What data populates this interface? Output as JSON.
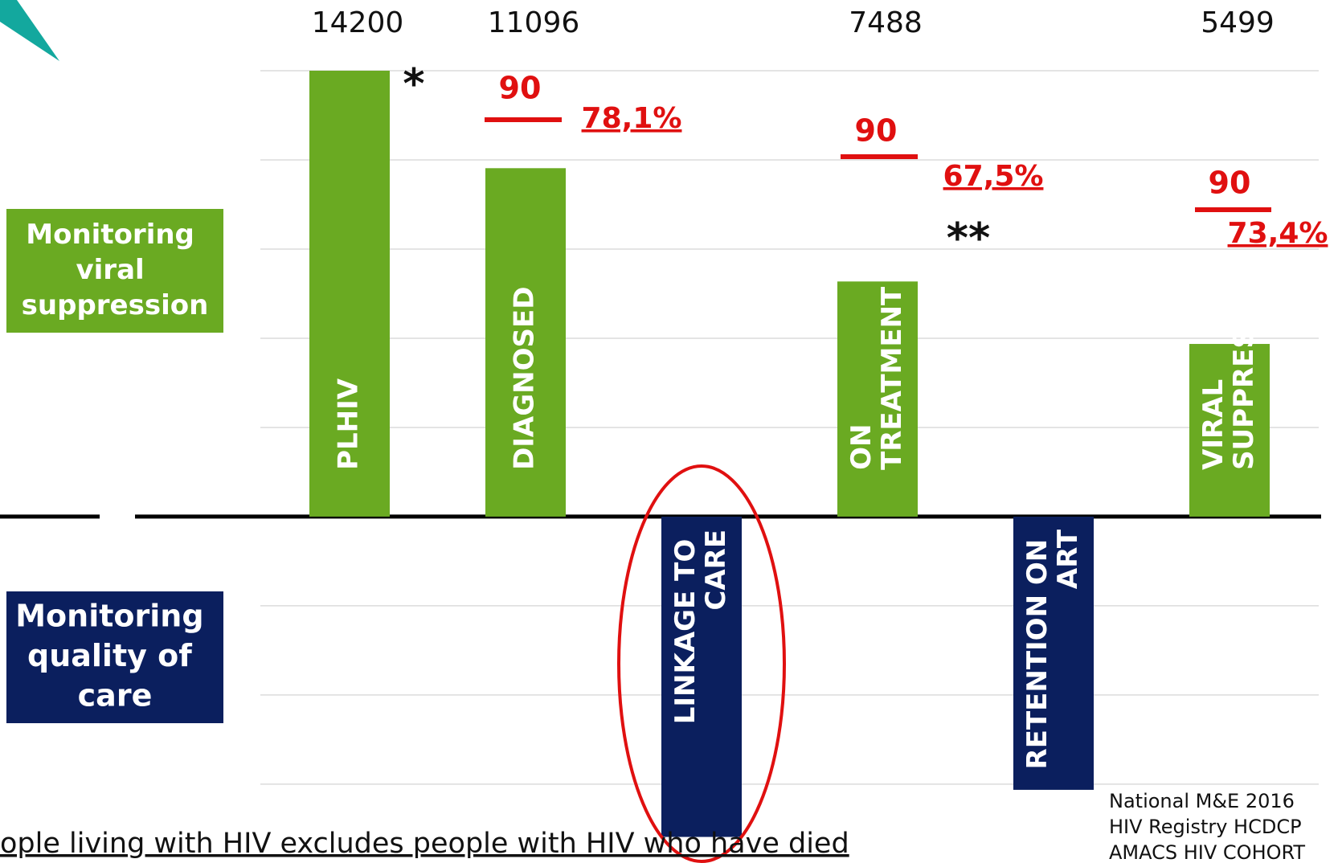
{
  "chart_data": {
    "type": "bar",
    "categories": [
      "PLHIV",
      "DIAGNOSED",
      "LINKAGE TO CARE",
      "ON TREATMENT",
      "RETENTION ON ART",
      "VIRAL SUPPRESSION"
    ],
    "values": [
      14200,
      11096,
      -10200,
      7488,
      -8700,
      5499
    ],
    "colors": [
      "#6aaa22",
      "#6aaa22",
      "#0b1f5e",
      "#6aaa22",
      "#0b1f5e",
      "#6aaa22"
    ],
    "ylim": [
      -10800,
      14200
    ],
    "yticks": [
      -8520,
      -5680,
      -2840,
      0,
      2840,
      5680,
      8520,
      11360,
      14200
    ],
    "grid": true,
    "side_labels": [
      "Monitoring viral suppression",
      "Monitoring quality of care"
    ],
    "annotations": [
      "*",
      "**",
      "90",
      "78,1%",
      "90",
      "67,5%",
      "90",
      "73,4%"
    ],
    "footnote": "ople living with HIV  excludes people with HIV who have died",
    "sources": [
      "National M&E 2016",
      "HIV Registry HCDCP",
      "AMACS HIV COHORT"
    ]
  }
}
